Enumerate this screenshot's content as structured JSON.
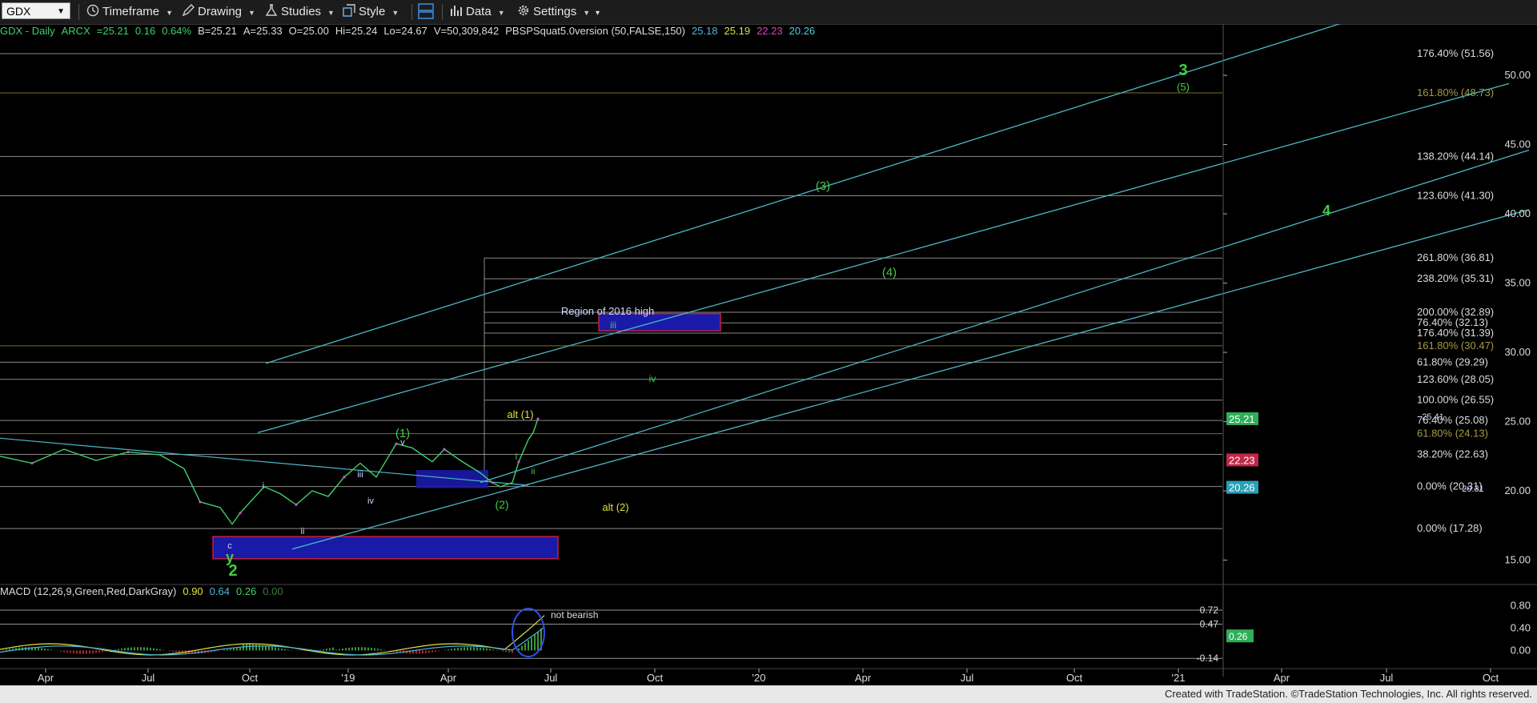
{
  "toolbar": {
    "symbol": "GDX",
    "timeframe": "Timeframe",
    "drawing": "Drawing",
    "studies": "Studies",
    "style": "Style",
    "data": "Data",
    "settings": "Settings"
  },
  "info": {
    "symbol_desc": "GDX - Daily",
    "exchange": "ARCX",
    "last": "=25.21",
    "change": "0.16",
    "pct": "0.64%",
    "bid": "B=25.21",
    "ask": "A=25.33",
    "open": "O=25.00",
    "high": "Hi=25.24",
    "low": "Lo=24.67",
    "volume": "V=50,309,842",
    "study": "PBSPSquat5.0version (50,FALSE,150)",
    "v1": "25.18",
    "v2": "25.19",
    "v3": "22.23",
    "v4": "20.26"
  },
  "macd": {
    "title": "MACD (12,26,9,Green,Red,DarkGray)",
    "v1": "0.90",
    "v2": "0.64",
    "v3": "0.26",
    "v4": "0.00"
  },
  "footer": "Created with TradeStation. ©TradeStation Technologies, Inc. All rights reserved.",
  "colors": {
    "background": "#000000",
    "price_up": "#3fd06a",
    "price_down": "#d050c8",
    "channel": "#4bb8c8",
    "fib_line": "#b8b8b8",
    "fib_gold": "#8a7a2a",
    "wave_green": "#44cc44",
    "wave_yellow": "#e0e040",
    "zone_blue": "#1a1aa8"
  },
  "chart_data": {
    "type": "line",
    "title": "GDX - Daily",
    "x_ticks": [
      "Apr",
      "Jul",
      "Oct",
      "'19",
      "Apr",
      "Jul",
      "Oct",
      "'20",
      "Apr",
      "Jul",
      "Oct",
      "'21",
      "Apr",
      "Jul",
      "Oct"
    ],
    "price_axis": {
      "ticks": [
        15.0,
        20.0,
        25.0,
        30.0,
        35.0,
        40.0,
        45.0,
        50.0
      ],
      "range": [
        13.5,
        53.5
      ]
    },
    "fib_levels": [
      {
        "label": "176.40% (51.56)",
        "value": 51.56
      },
      {
        "label": "161.80% (48.73)",
        "value": 48.73
      },
      {
        "label": "138.20% (44.14)",
        "value": 44.14
      },
      {
        "label": "123.60% (41.30)",
        "value": 41.3
      },
      {
        "label": "261.80% (36.81)",
        "value": 36.81
      },
      {
        "label": "238.20% (35.31)",
        "value": 35.31
      },
      {
        "label": "200.00% (32.89)",
        "value": 32.89
      },
      {
        "label": "76.40% (32.13)",
        "value": 32.13
      },
      {
        "label": "176.40% (31.39)",
        "value": 31.39
      },
      {
        "label": "161.80% (30.47)",
        "value": 30.47
      },
      {
        "label": "61.80% (29.29)",
        "value": 29.29
      },
      {
        "label": "123.60% (28.05)",
        "value": 28.05
      },
      {
        "label": "100.00% (26.55)",
        "value": 26.55
      },
      {
        "label": "76.40% (25.08)",
        "value": 25.08
      },
      {
        "label": "61.80% (24.13)",
        "value": 24.13
      },
      {
        "label": "38.20% (22.63)",
        "value": 22.63
      },
      {
        "label": "0.00% (20.31)",
        "value": 20.31
      },
      {
        "label": "0.00% (17.28)",
        "value": 17.28
      }
    ],
    "price_markers": [
      {
        "label": "25.21",
        "value": 25.21,
        "color": "#2fae5a"
      },
      {
        "label": "22.23",
        "value": 22.23,
        "color": "#c02848"
      },
      {
        "label": "20.26",
        "value": 20.26,
        "color": "#2aa0b8"
      }
    ],
    "wave_labels": [
      {
        "text": "3",
        "color": "#44cc44"
      },
      {
        "text": "(5)",
        "color": "#44cc44"
      },
      {
        "text": "(3)",
        "color": "#44cc44"
      },
      {
        "text": "4",
        "color": "#44cc44"
      },
      {
        "text": "(4)",
        "color": "#44cc44"
      },
      {
        "text": "Region of 2016 high",
        "color": "#cfd8ff"
      },
      {
        "text": "iii",
        "color": "#44cc44"
      },
      {
        "text": "iv",
        "color": "#44cc44"
      },
      {
        "text": "alt (1)",
        "color": "#e0e040"
      },
      {
        "text": "(1)",
        "color": "#44cc44"
      },
      {
        "text": "v",
        "color": "#cfd8ff"
      },
      {
        "text": "iii",
        "color": "#cfd8ff"
      },
      {
        "text": "i",
        "color": "#cfd8ff"
      },
      {
        "text": "iv",
        "color": "#cfd8ff"
      },
      {
        "text": "ii",
        "color": "#cfd8ff"
      },
      {
        "text": "i",
        "color": "#44cc44"
      },
      {
        "text": "ii",
        "color": "#44cc44"
      },
      {
        "text": "(2)",
        "color": "#44cc44"
      },
      {
        "text": "alt (2)",
        "color": "#e0e040"
      },
      {
        "text": "c",
        "color": "#cfd8ff"
      },
      {
        "text": "y",
        "color": "#44cc44"
      },
      {
        "text": "2",
        "color": "#44cc44"
      },
      {
        "text": "25.41",
        "color": "#cfd8ff"
      },
      {
        "text": "20.31",
        "color": "#cfd8ff"
      }
    ],
    "macd_axis": {
      "ticks": [
        "0.80",
        "0.40",
        "0.00"
      ],
      "range": [
        -0.28,
        0.92
      ]
    },
    "macd_levels": [
      {
        "label": "0.72",
        "value": 0.72
      },
      {
        "label": "0.47",
        "value": 0.47
      },
      {
        "label": "-0.14",
        "value": -0.14
      }
    ],
    "macd_marker": {
      "label": "0.26",
      "value": 0.26
    },
    "macd_annotation": "not bearish",
    "grid": false
  }
}
